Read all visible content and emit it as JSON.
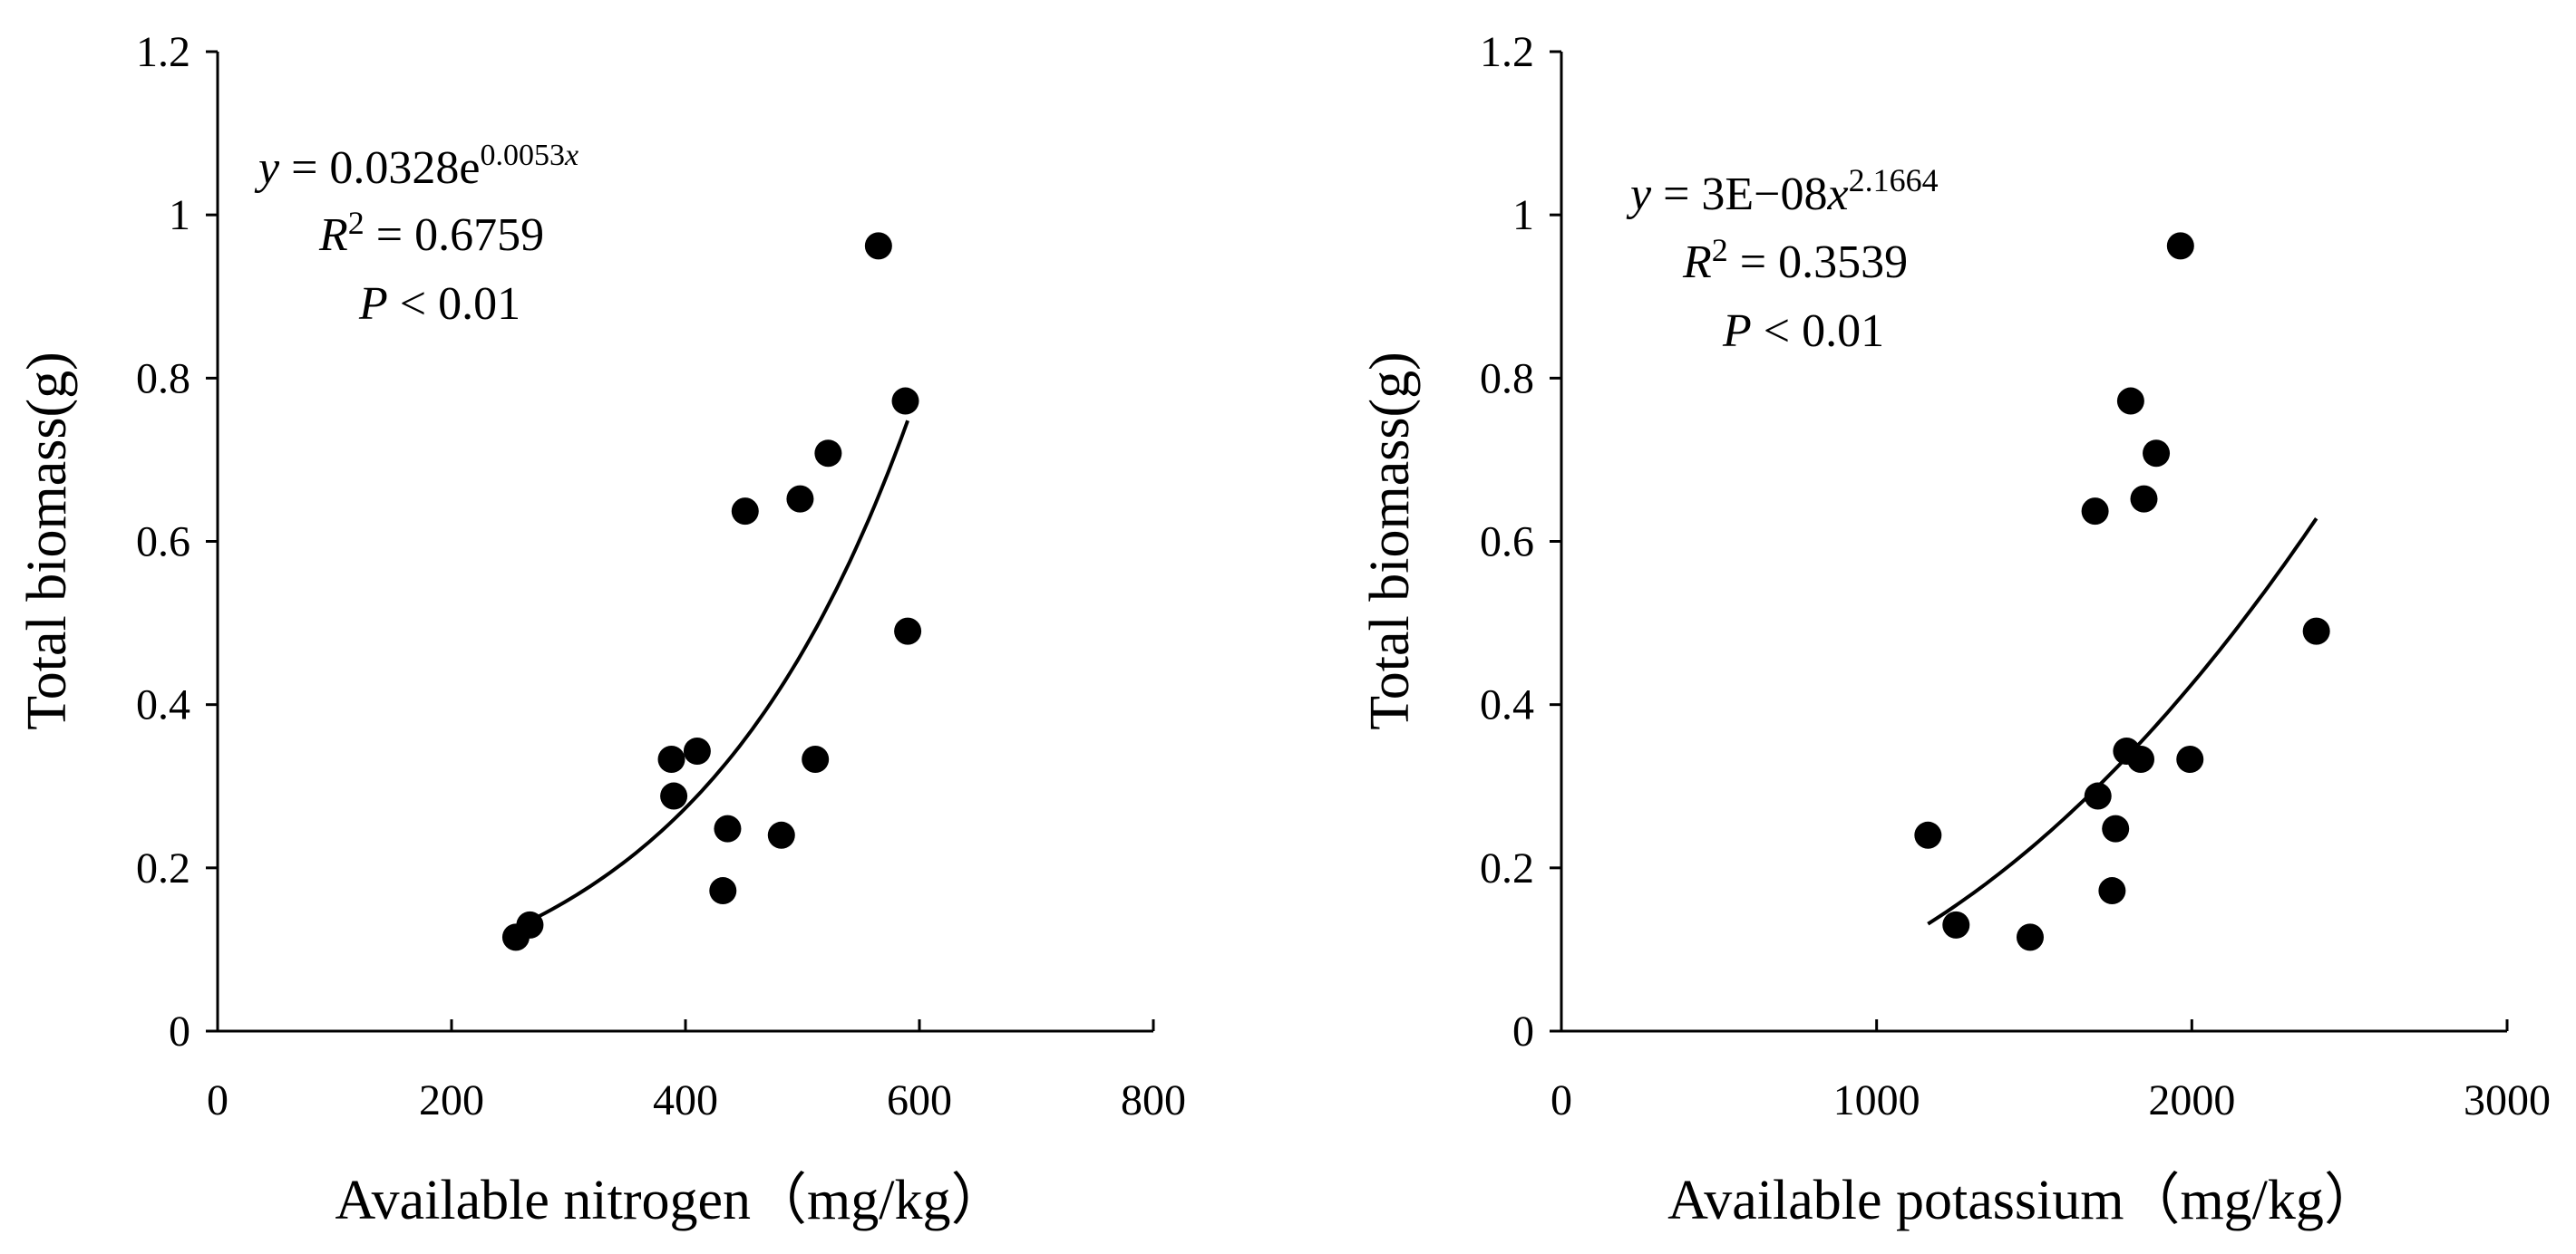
{
  "chart_data": [
    {
      "type": "scatter",
      "fit": "exponential",
      "xlabel": "Available nitrogen（mg/kg）",
      "ylabel": "Total biomass(g)",
      "xlim": [
        0,
        800
      ],
      "ylim": [
        0,
        1.2
      ],
      "xticks": [
        0,
        200,
        400,
        600,
        800
      ],
      "yticks": [
        0,
        0.2,
        0.4,
        0.6,
        0.8,
        1,
        1.2
      ],
      "ytick_labels": [
        "0",
        "0.2",
        "0.4",
        "0.6",
        "0.8",
        "1",
        "1.2"
      ],
      "grid": false,
      "equation": {
        "lhs": "y",
        "eq": " = 0.0328e",
        "exp_num": "0.0053",
        "exp_var": "x",
        "r2_sym": "R",
        "r2_sup": "2",
        "r2_val": " = 0.6759",
        "p_sym": "P",
        "p_val": " < 0.01"
      },
      "fit_params": {
        "a": 0.0328,
        "b": 0.0053,
        "x_range": [
          258,
          590
        ]
      },
      "points": [
        {
          "x": 255,
          "y": 0.115
        },
        {
          "x": 267,
          "y": 0.13
        },
        {
          "x": 388,
          "y": 0.333
        },
        {
          "x": 390,
          "y": 0.288
        },
        {
          "x": 410,
          "y": 0.343
        },
        {
          "x": 432,
          "y": 0.172
        },
        {
          "x": 436,
          "y": 0.248
        },
        {
          "x": 451,
          "y": 0.637
        },
        {
          "x": 482,
          "y": 0.24
        },
        {
          "x": 498,
          "y": 0.652
        },
        {
          "x": 511,
          "y": 0.333
        },
        {
          "x": 522,
          "y": 0.708
        },
        {
          "x": 565,
          "y": 0.962
        },
        {
          "x": 588,
          "y": 0.772
        },
        {
          "x": 590,
          "y": 0.49
        }
      ]
    },
    {
      "type": "scatter",
      "fit": "power",
      "xlabel": "Available potassium（mg/kg）",
      "ylabel": "Total biomass(g)",
      "xlim": [
        0,
        3000
      ],
      "ylim": [
        0,
        1.2
      ],
      "xticks": [
        0,
        1000,
        2000,
        3000
      ],
      "yticks": [
        0,
        0.2,
        0.4,
        0.6,
        0.8,
        1,
        1.2
      ],
      "ytick_labels": [
        "0",
        "0.2",
        "0.4",
        "0.6",
        "0.8",
        "1",
        "1.2"
      ],
      "grid": false,
      "equation": {
        "lhs": "y",
        "eq": " = 3E−08",
        "var": "x",
        "exp": "2.1664",
        "r2_sym": "R",
        "r2_sup": "2",
        "r2_val": " = 0.3539",
        "p_sym": "P",
        "p_val": " < 0.01"
      },
      "fit_params": {
        "a": 3e-08,
        "b": 2.1664,
        "x_range": [
          1163,
          2395
        ]
      },
      "points": [
        {
          "x": 1163,
          "y": 0.24
        },
        {
          "x": 1252,
          "y": 0.13
        },
        {
          "x": 1487,
          "y": 0.115
        },
        {
          "x": 1693,
          "y": 0.637
        },
        {
          "x": 1702,
          "y": 0.288
        },
        {
          "x": 1747,
          "y": 0.172
        },
        {
          "x": 1758,
          "y": 0.248
        },
        {
          "x": 1793,
          "y": 0.343
        },
        {
          "x": 1806,
          "y": 0.772
        },
        {
          "x": 1838,
          "y": 0.333
        },
        {
          "x": 1848,
          "y": 0.652
        },
        {
          "x": 1887,
          "y": 0.708
        },
        {
          "x": 1964,
          "y": 0.962
        },
        {
          "x": 1994,
          "y": 0.333
        },
        {
          "x": 2395,
          "y": 0.49
        }
      ]
    }
  ]
}
